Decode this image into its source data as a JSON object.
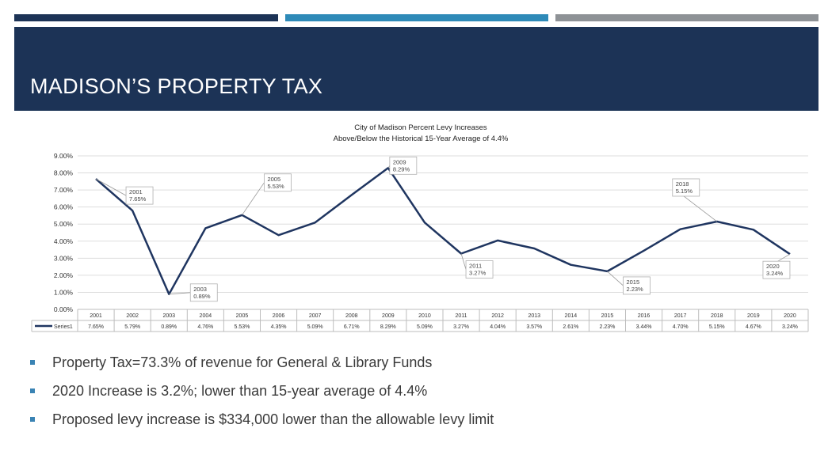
{
  "colors": {
    "navy": "#1c3356",
    "teal": "#2e8ab8",
    "gray": "#8e9296",
    "bullet": "#3a83b4",
    "line": "#1f3560"
  },
  "header": {
    "title": "MADISON’S PROPERTY TAX"
  },
  "chart_data": {
    "type": "line",
    "title": "City of Madison Percent Levy Increases",
    "subtitle": "Above/Below the Historical 15-Year Average of 4.4%",
    "categories": [
      "2001",
      "2002",
      "2003",
      "2004",
      "2005",
      "2006",
      "2007",
      "2008",
      "2009",
      "2010",
      "2011",
      "2012",
      "2013",
      "2014",
      "2015",
      "2016",
      "2017",
      "2018",
      "2019",
      "2020"
    ],
    "series": [
      {
        "name": "Series1",
        "values": [
          7.65,
          5.79,
          0.89,
          4.76,
          5.53,
          4.35,
          5.09,
          6.71,
          8.29,
          5.09,
          3.27,
          4.04,
          3.57,
          2.61,
          2.23,
          3.44,
          4.7,
          5.15,
          4.67,
          3.24
        ],
        "table_labels": [
          "7.65%",
          "5.79%",
          "0.89%",
          "4.76%",
          "5.53%",
          "4.35%",
          "5.09%",
          "6.71%",
          "8.29%",
          "5.09%",
          "3.27%",
          "4.04%",
          "3.57%",
          "2.61%",
          "2.23%",
          "3.44%",
          "4.70%",
          "5.15%",
          "4.67%",
          "3.24%"
        ]
      }
    ],
    "ylim": [
      0,
      9
    ],
    "yticks": [
      "0.00%",
      "1.00%",
      "2.00%",
      "3.00%",
      "4.00%",
      "5.00%",
      "6.00%",
      "7.00%",
      "8.00%",
      "9.00%"
    ],
    "grid": true,
    "data_table": true,
    "callouts": [
      {
        "year": "2001",
        "value": "7.65%"
      },
      {
        "year": "2003",
        "value": "0.89%"
      },
      {
        "year": "2005",
        "value": "5.53%"
      },
      {
        "year": "2009",
        "value": "8.29%"
      },
      {
        "year": "2011",
        "value": "3.27%"
      },
      {
        "year": "2015",
        "value": "2.23%"
      },
      {
        "year": "2018",
        "value": "5.15%"
      },
      {
        "year": "2020",
        "value": "3.24%"
      }
    ]
  },
  "bullets": [
    "Property Tax=73.3% of revenue for General & Library Funds",
    "2020 Increase is 3.2%; lower than 15-year average of 4.4%",
    "Proposed levy increase is $334,000 lower than the allowable levy limit"
  ]
}
